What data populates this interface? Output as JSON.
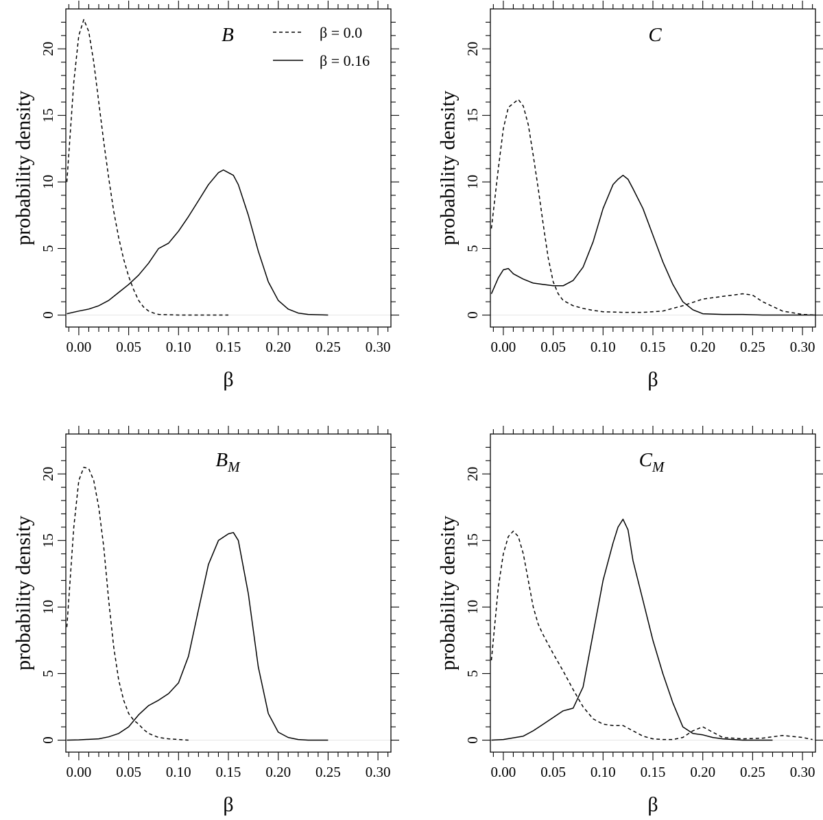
{
  "chart_data": [
    {
      "type": "line",
      "title": "B",
      "title_sub": "",
      "xlabel": "β",
      "ylabel": "probability density",
      "xlim": [
        -0.013,
        0.313
      ],
      "ylim": [
        -0.9,
        23
      ],
      "xticks": [
        0.0,
        0.05,
        0.1,
        0.15,
        0.2,
        0.25,
        0.3
      ],
      "xtick_labels": [
        "0.00",
        "0.05",
        "0.10",
        "0.15",
        "0.20",
        "0.25",
        "0.30"
      ],
      "yticks": [
        0,
        5,
        10,
        15,
        20
      ],
      "ytick_labels": [
        "0",
        "5",
        "10",
        "15",
        "20"
      ],
      "legend": [
        {
          "label": "β = 0.0",
          "style": "dashed"
        },
        {
          "label": "β = 0.16",
          "style": "solid"
        }
      ],
      "series": [
        {
          "name": "β = 0.0",
          "style": "dashed",
          "x": [
            -0.012,
            -0.005,
            0.0,
            0.005,
            0.01,
            0.015,
            0.02,
            0.025,
            0.03,
            0.035,
            0.04,
            0.045,
            0.05,
            0.055,
            0.06,
            0.065,
            0.07,
            0.075,
            0.08,
            0.09,
            0.1,
            0.11,
            0.12,
            0.13,
            0.14,
            0.15
          ],
          "y": [
            10.0,
            17.5,
            21.0,
            22.2,
            21.3,
            19.0,
            16.0,
            13.0,
            10.3,
            7.8,
            5.8,
            4.2,
            2.9,
            1.9,
            1.1,
            0.6,
            0.3,
            0.15,
            0.05,
            0.02,
            0.0,
            0.0,
            0.0,
            0.0,
            0.0,
            0.0
          ]
        },
        {
          "name": "β = 0.16",
          "style": "solid",
          "x": [
            -0.012,
            0.0,
            0.01,
            0.02,
            0.03,
            0.04,
            0.05,
            0.06,
            0.07,
            0.08,
            0.09,
            0.1,
            0.11,
            0.12,
            0.13,
            0.14,
            0.145,
            0.15,
            0.155,
            0.16,
            0.17,
            0.18,
            0.19,
            0.2,
            0.21,
            0.22,
            0.23,
            0.25
          ],
          "y": [
            0.1,
            0.3,
            0.45,
            0.7,
            1.1,
            1.7,
            2.3,
            3.0,
            3.9,
            5.0,
            5.4,
            6.3,
            7.4,
            8.6,
            9.8,
            10.7,
            10.9,
            10.7,
            10.5,
            9.8,
            7.5,
            4.8,
            2.5,
            1.1,
            0.45,
            0.15,
            0.05,
            0.0
          ]
        }
      ]
    },
    {
      "type": "line",
      "title": "C",
      "title_sub": "",
      "xlabel": "β",
      "ylabel": "probability density",
      "xlim": [
        -0.013,
        0.313
      ],
      "ylim": [
        -0.9,
        23
      ],
      "xticks": [
        0.0,
        0.05,
        0.1,
        0.15,
        0.2,
        0.25,
        0.3
      ],
      "xtick_labels": [
        "0.00",
        "0.05",
        "0.10",
        "0.15",
        "0.20",
        "0.25",
        "0.30"
      ],
      "yticks": [
        0,
        5,
        10,
        15,
        20
      ],
      "ytick_labels": [
        "0",
        "5",
        "10",
        "15",
        "20"
      ],
      "series": [
        {
          "name": "β = 0.0",
          "style": "dashed",
          "x": [
            -0.012,
            -0.005,
            0.0,
            0.005,
            0.01,
            0.015,
            0.02,
            0.025,
            0.03,
            0.035,
            0.04,
            0.045,
            0.05,
            0.055,
            0.06,
            0.07,
            0.08,
            0.09,
            0.1,
            0.12,
            0.14,
            0.16,
            0.18,
            0.2,
            0.22,
            0.24,
            0.25,
            0.26,
            0.28,
            0.3,
            0.313
          ],
          "y": [
            6.5,
            11.0,
            14.0,
            15.6,
            15.9,
            16.2,
            15.7,
            14.3,
            12.0,
            9.5,
            6.8,
            4.3,
            2.5,
            1.6,
            1.1,
            0.7,
            0.5,
            0.35,
            0.25,
            0.2,
            0.2,
            0.3,
            0.7,
            1.2,
            1.4,
            1.6,
            1.5,
            1.0,
            0.3,
            0.05,
            0.0
          ]
        },
        {
          "name": "β = 0.16",
          "style": "solid",
          "x": [
            -0.012,
            -0.005,
            0.0,
            0.005,
            0.01,
            0.02,
            0.03,
            0.04,
            0.05,
            0.06,
            0.07,
            0.08,
            0.09,
            0.1,
            0.11,
            0.115,
            0.12,
            0.125,
            0.13,
            0.14,
            0.15,
            0.16,
            0.17,
            0.18,
            0.19,
            0.2,
            0.22,
            0.24,
            0.26,
            0.28,
            0.3,
            0.313
          ],
          "y": [
            1.6,
            2.8,
            3.4,
            3.5,
            3.1,
            2.7,
            2.4,
            2.3,
            2.2,
            2.2,
            2.6,
            3.6,
            5.5,
            8.0,
            9.8,
            10.2,
            10.5,
            10.2,
            9.5,
            8.0,
            6.0,
            4.0,
            2.3,
            1.0,
            0.4,
            0.1,
            0.05,
            0.05,
            0.0,
            0.0,
            0.0,
            0.0
          ]
        }
      ]
    },
    {
      "type": "line",
      "title": "B",
      "title_sub": "M",
      "xlabel": "β",
      "ylabel": "probability density",
      "xlim": [
        -0.013,
        0.313
      ],
      "ylim": [
        -0.9,
        23
      ],
      "xticks": [
        0.0,
        0.05,
        0.1,
        0.15,
        0.2,
        0.25,
        0.3
      ],
      "xtick_labels": [
        "0.00",
        "0.05",
        "0.10",
        "0.15",
        "0.20",
        "0.25",
        "0.30"
      ],
      "yticks": [
        0,
        5,
        10,
        15,
        20
      ],
      "ytick_labels": [
        "0",
        "5",
        "10",
        "15",
        "20"
      ],
      "series": [
        {
          "name": "β = 0.0",
          "style": "dashed",
          "x": [
            -0.012,
            -0.005,
            0.0,
            0.005,
            0.01,
            0.015,
            0.02,
            0.025,
            0.03,
            0.035,
            0.04,
            0.045,
            0.05,
            0.055,
            0.06,
            0.065,
            0.07,
            0.08,
            0.09,
            0.1,
            0.11
          ],
          "y": [
            8.5,
            16.0,
            19.5,
            20.5,
            20.4,
            19.5,
            17.5,
            14.5,
            10.5,
            7.0,
            4.5,
            3.0,
            2.0,
            1.5,
            1.2,
            0.8,
            0.5,
            0.2,
            0.1,
            0.05,
            0.0
          ]
        },
        {
          "name": "β = 0.16",
          "style": "solid",
          "x": [
            -0.012,
            0.0,
            0.02,
            0.03,
            0.04,
            0.05,
            0.06,
            0.07,
            0.08,
            0.09,
            0.1,
            0.11,
            0.12,
            0.13,
            0.14,
            0.15,
            0.155,
            0.16,
            0.17,
            0.18,
            0.19,
            0.2,
            0.21,
            0.22,
            0.23,
            0.25
          ],
          "y": [
            0.0,
            0.02,
            0.1,
            0.25,
            0.5,
            1.0,
            1.9,
            2.6,
            3.0,
            3.5,
            4.3,
            6.3,
            9.8,
            13.2,
            15.0,
            15.5,
            15.6,
            15.0,
            11.0,
            5.5,
            2.0,
            0.6,
            0.2,
            0.05,
            0.0,
            0.0
          ]
        }
      ]
    },
    {
      "type": "line",
      "title": "C",
      "title_sub": "M",
      "xlabel": "β",
      "ylabel": "probability density",
      "xlim": [
        -0.013,
        0.313
      ],
      "ylim": [
        -0.9,
        23
      ],
      "xticks": [
        0.0,
        0.05,
        0.1,
        0.15,
        0.2,
        0.25,
        0.3
      ],
      "xtick_labels": [
        "0.00",
        "0.05",
        "0.10",
        "0.15",
        "0.20",
        "0.25",
        "0.30"
      ],
      "yticks": [
        0,
        5,
        10,
        15,
        20
      ],
      "ytick_labels": [
        "0",
        "5",
        "10",
        "15",
        "20"
      ],
      "series": [
        {
          "name": "β = 0.0",
          "style": "dashed",
          "x": [
            -0.012,
            -0.005,
            0.0,
            0.005,
            0.01,
            0.015,
            0.02,
            0.025,
            0.03,
            0.035,
            0.04,
            0.05,
            0.06,
            0.07,
            0.08,
            0.09,
            0.1,
            0.11,
            0.12,
            0.13,
            0.14,
            0.15,
            0.16,
            0.17,
            0.18,
            0.19,
            0.2,
            0.21,
            0.22,
            0.24,
            0.26,
            0.28,
            0.3,
            0.31
          ],
          "y": [
            6.0,
            11.5,
            14.0,
            15.3,
            15.7,
            15.3,
            14.0,
            12.0,
            10.0,
            8.7,
            7.9,
            6.5,
            5.2,
            3.8,
            2.5,
            1.6,
            1.2,
            1.1,
            1.1,
            0.7,
            0.3,
            0.1,
            0.05,
            0.05,
            0.2,
            0.7,
            1.0,
            0.6,
            0.2,
            0.1,
            0.15,
            0.35,
            0.2,
            0.05
          ]
        },
        {
          "name": "β = 0.16",
          "style": "solid",
          "x": [
            -0.012,
            0.0,
            0.02,
            0.03,
            0.04,
            0.05,
            0.06,
            0.065,
            0.07,
            0.08,
            0.09,
            0.1,
            0.11,
            0.115,
            0.12,
            0.125,
            0.13,
            0.14,
            0.15,
            0.16,
            0.17,
            0.18,
            0.19,
            0.2,
            0.21,
            0.22,
            0.24,
            0.27
          ],
          "y": [
            0.0,
            0.05,
            0.3,
            0.7,
            1.2,
            1.7,
            2.2,
            2.3,
            2.4,
            4.0,
            8.0,
            12.0,
            14.8,
            16.0,
            16.6,
            15.8,
            13.5,
            10.5,
            7.5,
            5.0,
            2.8,
            1.0,
            0.5,
            0.4,
            0.2,
            0.1,
            0.0,
            0.0
          ]
        }
      ]
    }
  ]
}
